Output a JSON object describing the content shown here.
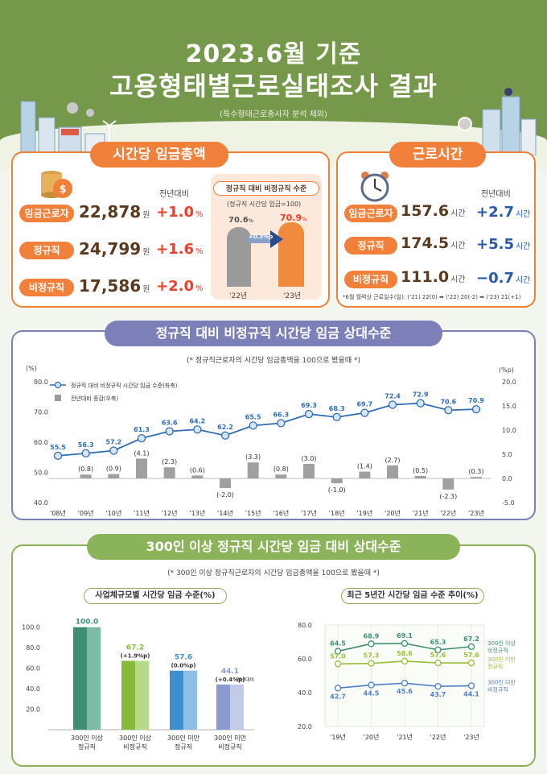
{
  "header": {
    "title_line1": "2023.6월 기준",
    "title_line2": "고용형태별근로실태조사 결과",
    "subtitle": "(특수형태근로종사자 분석 제외)"
  },
  "wage_panel": {
    "title": "시간당 임금총액",
    "compare_label": "전년대비",
    "rows": [
      {
        "label": "임금근로자",
        "value": "22,878",
        "unit": "원",
        "change": "+1.0",
        "change_unit": "%"
      },
      {
        "label": "정규직",
        "value": "24,799",
        "unit": "원",
        "change": "+1.6",
        "change_unit": "%"
      },
      {
        "label": "비정규직",
        "value": "17,586",
        "unit": "원",
        "change": "+2.0",
        "change_unit": "%"
      }
    ],
    "mini": {
      "title": "정규직 대비 비정규직 수준",
      "note": "(정규직 시간당 임금=100)",
      "bar_22_value": "70.6",
      "bar_23_value": "70.9",
      "unit": "%",
      "delta": "+0.3%p",
      "label_22": "'22년",
      "label_23": "'23년",
      "val22": 70.6,
      "val23": 70.9
    }
  },
  "hours_panel": {
    "title": "근로시간",
    "compare_label": "전년대비",
    "rows": [
      {
        "label": "임금근로자",
        "value": "157.6",
        "unit": "시간",
        "change": "+2.7",
        "change_unit": "시간"
      },
      {
        "label": "정규직",
        "value": "174.5",
        "unit": "시간",
        "change": "+5.5",
        "change_unit": "시간"
      },
      {
        "label": "비정규직",
        "value": "111.0",
        "unit": "시간",
        "change": "−0.7",
        "change_unit": "시간"
      }
    ],
    "footnote": "*6월 월력상 근로일수(일): ('21) 22(0) ➡ ('22) 20(-2) ➡ ('23) 21(+1)"
  },
  "colors": {
    "hero_green": "#76984a",
    "orange": "#f0803a",
    "purple": "#7d80b8",
    "green_frame": "#8ab35a",
    "red": "#e8412d",
    "blue": "#2959a8"
  },
  "chart_data": [
    {
      "type": "line",
      "title": "정규직 대비 비정규직 시간당 임금 상대수준",
      "note": "(* 정규직근로자의 시간당 임금총액을 100으로 봤을때 *)",
      "y_left_unit": "(%)",
      "y_right_unit": "(%p)",
      "categories": [
        "'08년",
        "'09년",
        "'10년",
        "'11년",
        "'12년",
        "'13년",
        "'14년",
        "'15년",
        "'16년",
        "'17년",
        "'18년",
        "'19년",
        "'20년",
        "'21년",
        "'22년",
        "'23년"
      ],
      "ylim": [
        40,
        80
      ],
      "y2lim": [
        -5,
        20
      ],
      "y_ticks": [
        "40.0",
        "50.0",
        "60.0",
        "70.0",
        "80.0"
      ],
      "y2_ticks": [
        "-5.0",
        "0.0",
        "5.0",
        "10.0",
        "15.0",
        "20.0"
      ],
      "series": [
        {
          "name": "정규직 대비 비정규직 시간당 임금 수준(좌축)",
          "type": "line",
          "values": [
            55.5,
            56.3,
            57.2,
            61.3,
            63.6,
            64.2,
            62.2,
            65.5,
            66.3,
            69.3,
            68.3,
            69.7,
            72.4,
            72.9,
            70.6,
            70.9
          ],
          "labels": [
            "55.5",
            "56.3",
            "57.2",
            "61.3",
            "63.6",
            "64.2",
            "62.2",
            "65.5",
            "66.3",
            "69.3",
            "68.3",
            "69.7",
            "72.4",
            "72.9",
            "70.6",
            "70.9"
          ]
        },
        {
          "name": "전년대비 증감(우축)",
          "type": "bar",
          "values": [
            null,
            0.8,
            0.9,
            4.1,
            2.3,
            0.6,
            -2.0,
            3.3,
            0.8,
            3.0,
            -1.0,
            1.4,
            2.7,
            0.5,
            -2.3,
            0.3
          ],
          "labels": [
            "",
            "(0.8)",
            "(0.9)",
            "(4.1)",
            "(2.3)",
            "(0.6)",
            "(-2.0)",
            "(3.3)",
            "(0.8)",
            "(3.0)",
            "(-1.0)",
            "(1.4)",
            "(2.7)",
            "(0.5)",
            "(-2.3)",
            "(0.3)"
          ]
        }
      ]
    },
    {
      "type": "bar",
      "section_title": "300인 이상 정규직 시간당 임금 대비 상대수준",
      "note": "(* 300인 이상 정규직근로자의 시간당 임금총액을 100으로 봤을때 *)",
      "title": "사업체규모별 시간당 임금 수준(%)",
      "categories": [
        "300인 이상|정규직",
        "300인 이상|비정규직",
        "300인 미만|정규직",
        "300인 미만|비정규직"
      ],
      "values": [
        100.0,
        67.2,
        57.6,
        44.1
      ],
      "labels": [
        "100.0",
        "67.2",
        "57.6",
        "44.1"
      ],
      "changes": [
        "",
        "(+1.9%p)",
        "(0.0%p)",
        "(+0.4%p)"
      ],
      "change_suffix": "전년대비",
      "ylim": [
        0,
        110
      ],
      "y_ticks": [
        "20.0",
        "40.0",
        "60.0",
        "80.0",
        "100.0"
      ]
    },
    {
      "type": "line",
      "title": "최근 5년간 시간당 임금 수준 추이(%)",
      "categories": [
        "'19년",
        "'20년",
        "'21년",
        "'22년",
        "'23년"
      ],
      "ylim": [
        20,
        80
      ],
      "y_ticks": [
        "20.0",
        "40.0",
        "60.0",
        "80.0"
      ],
      "series": [
        {
          "name": "300인 이상|비정규직",
          "values": [
            64.5,
            68.9,
            69.1,
            65.3,
            67.2
          ],
          "labels": [
            "64.5",
            "68.9",
            "69.1",
            "65.3",
            "67.2"
          ]
        },
        {
          "name": "300인 미만|정규직",
          "values": [
            57.0,
            57.3,
            58.6,
            57.6,
            57.6
          ],
          "labels": [
            "57.0",
            "57.3",
            "58.6",
            "57.6",
            "57.6"
          ]
        },
        {
          "name": "300인 미만|비정규직",
          "values": [
            42.7,
            44.5,
            45.6,
            43.7,
            44.1
          ],
          "labels": [
            "42.7",
            "44.5",
            "45.6",
            "43.7",
            "44.1"
          ]
        }
      ]
    }
  ]
}
